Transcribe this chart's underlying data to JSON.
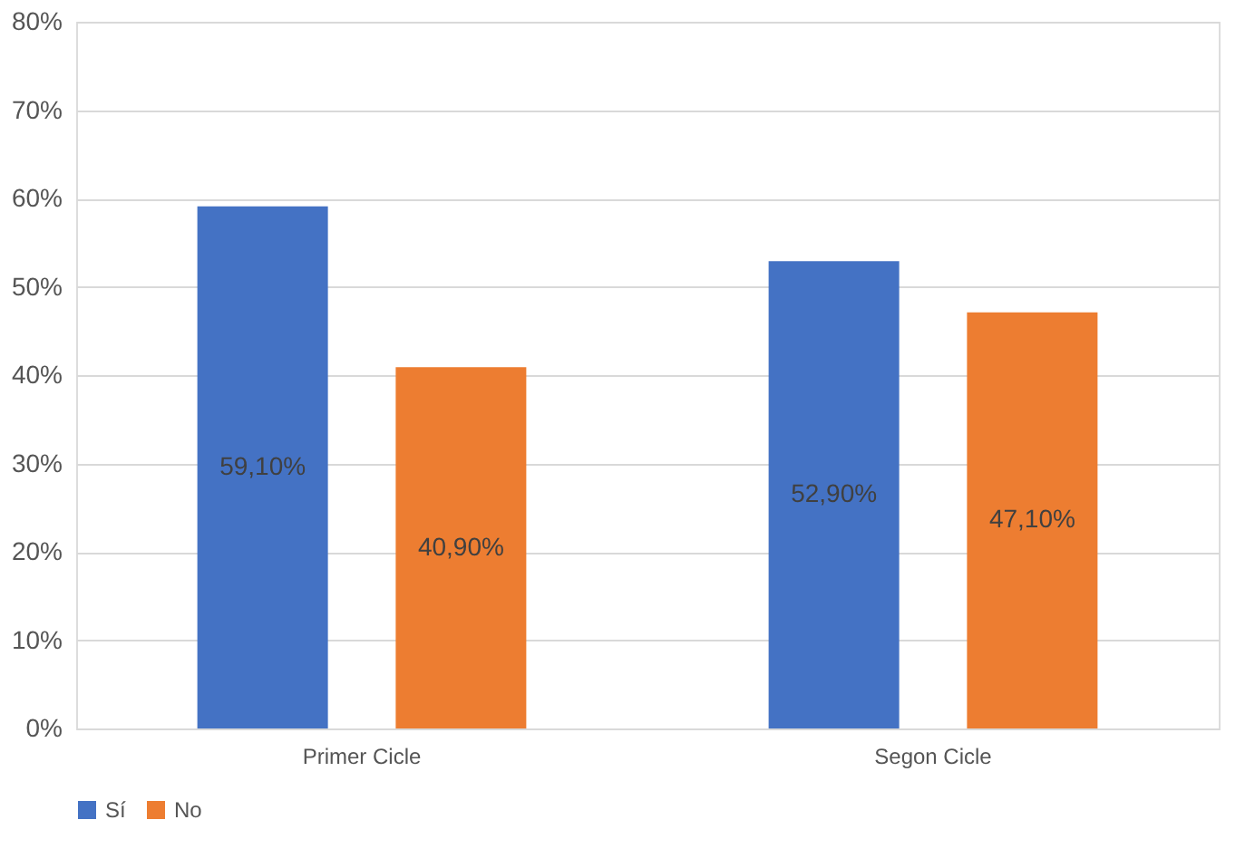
{
  "chart_data": {
    "type": "bar",
    "categories": [
      "Primer Cicle",
      "Segon Cicle"
    ],
    "series": [
      {
        "name": "Sí",
        "color": "#4472c4",
        "values": [
          59.1,
          52.9
        ],
        "value_labels": [
          "59,10%",
          "52,90%"
        ]
      },
      {
        "name": "No",
        "color": "#ed7d31",
        "values": [
          40.9,
          47.1
        ],
        "value_labels": [
          "40,90%",
          "47,10%"
        ]
      }
    ],
    "ylim": [
      0,
      80
    ],
    "yticks": [
      {
        "value": 0,
        "label": "0%"
      },
      {
        "value": 10,
        "label": "10%"
      },
      {
        "value": 20,
        "label": "20%"
      },
      {
        "value": 30,
        "label": "30%"
      },
      {
        "value": 40,
        "label": "40%"
      },
      {
        "value": 50,
        "label": "50%"
      },
      {
        "value": 60,
        "label": "60%"
      },
      {
        "value": 70,
        "label": "70%"
      },
      {
        "value": 80,
        "label": "80%"
      }
    ],
    "grid": "y",
    "legend": "bottom"
  }
}
